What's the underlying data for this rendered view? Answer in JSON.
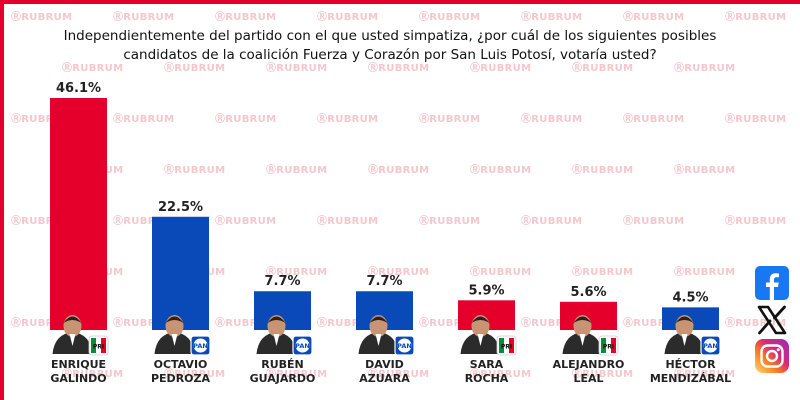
{
  "watermark": "RUBRUM",
  "question": "Independientemente del partido con el que usted simpatiza, ¿por cuál de los siguientes posibles candidatos de la coalición Fuerza y Corazón por San Luis Potosí, votaría usted?",
  "colors": {
    "red": "#e4002b",
    "blue": "#0a4ab8",
    "pri_green": "#0a8a3a"
  },
  "social_icons": [
    "facebook-icon",
    "x-icon",
    "instagram-icon"
  ],
  "chart_data": {
    "type": "bar",
    "categories": [
      "ENRIQUE GALINDO",
      "OCTAVIO PEDROZA",
      "RUBÉN GUAJARDO",
      "DAVID AZUARA",
      "SARA ROCHA",
      "ALEJANDRO LEAL",
      "HÉCTOR MENDIZÁBAL"
    ],
    "category_lines": [
      [
        "ENRIQUE",
        "GALINDO"
      ],
      [
        "OCTAVIO",
        "PEDROZA"
      ],
      [
        "RUBÉN",
        "GUAJARDO"
      ],
      [
        "DAVID",
        "AZUARA"
      ],
      [
        "SARA",
        "ROCHA"
      ],
      [
        "ALEJANDRO",
        "LEAL"
      ],
      [
        "HÉCTOR",
        "MENDIZÁBAL"
      ]
    ],
    "values": [
      46.1,
      22.5,
      7.7,
      7.7,
      5.9,
      5.6,
      4.5
    ],
    "value_labels": [
      "46.1%",
      "22.5%",
      "7.7%",
      "7.7%",
      "5.9%",
      "5.6%",
      "4.5%"
    ],
    "bar_colors": [
      "#e4002b",
      "#0a4ab8",
      "#0a4ab8",
      "#0a4ab8",
      "#e4002b",
      "#e4002b",
      "#0a4ab8"
    ],
    "party_badges": [
      "PRI",
      "PAN",
      "PAN",
      "PAN",
      "PRI",
      "PRI",
      "PAN"
    ],
    "title": "",
    "xlabel": "",
    "ylabel": "",
    "ylim": [
      0,
      46.1
    ],
    "grid": false
  }
}
